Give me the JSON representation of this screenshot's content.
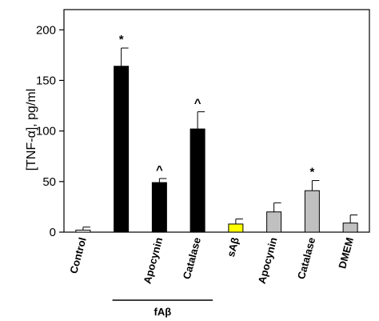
{
  "chart_data": {
    "type": "bar",
    "ylabel": "[TNF-α], pg/ml",
    "ylim": [
      0,
      220
    ],
    "yticks": [
      "0",
      "50",
      "100",
      "150",
      "200"
    ],
    "grid": false,
    "categories": [
      "Control",
      "",
      "Apocynin",
      "Catalase",
      "sAβ",
      "Apocynin",
      "Catalase",
      "DMEM"
    ],
    "values": [
      2,
      164,
      49,
      102,
      8,
      20,
      41,
      9
    ],
    "errors": [
      3,
      18,
      4,
      17,
      5,
      9,
      10,
      8
    ],
    "colors": [
      "#ffffff",
      "#000000",
      "#000000",
      "#000000",
      "#ffff00",
      "#c0c0c0",
      "#c0c0c0",
      "#c0c0c0"
    ],
    "annotations": [
      "",
      "*",
      "^",
      "^",
      "",
      "",
      "*",
      ""
    ],
    "group_label": {
      "text": "fAβ",
      "from": 1,
      "to": 3
    }
  }
}
